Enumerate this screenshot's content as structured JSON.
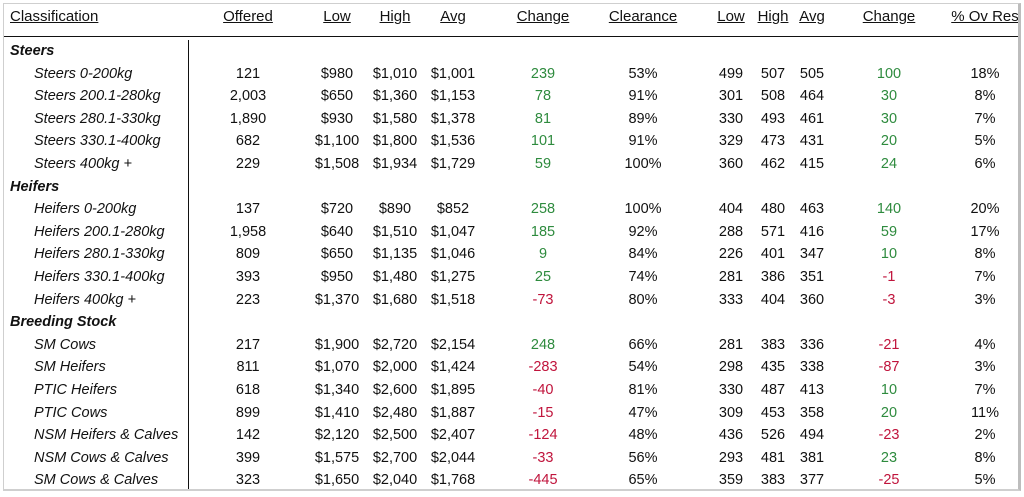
{
  "headers": {
    "classification": "Classification",
    "offered": "Offered",
    "low": "Low",
    "high": "High",
    "avg": "Avg",
    "change": "Change",
    "clearance": "Clearance",
    "low2": "Low",
    "high2": "High",
    "avg2": "Avg",
    "change2": "Change",
    "ovres": "% Ov Res"
  },
  "groups": [
    {
      "name": "Steers",
      "rows": [
        {
          "name": "Steers 0-200kg",
          "offered": "121",
          "low": "$980",
          "high": "$1,010",
          "avg": "$1,001",
          "change": "239",
          "clearance": "53%",
          "low2": "499",
          "high2": "507",
          "avg2": "505",
          "change2": "100",
          "ovres": "18%"
        },
        {
          "name": "Steers 200.1-280kg",
          "offered": "2,003",
          "low": "$650",
          "high": "$1,360",
          "avg": "$1,153",
          "change": "78",
          "clearance": "91%",
          "low2": "301",
          "high2": "508",
          "avg2": "464",
          "change2": "30",
          "ovres": "8%"
        },
        {
          "name": "Steers 280.1-330kg",
          "offered": "1,890",
          "low": "$930",
          "high": "$1,580",
          "avg": "$1,378",
          "change": "81",
          "clearance": "89%",
          "low2": "330",
          "high2": "493",
          "avg2": "461",
          "change2": "30",
          "ovres": "7%"
        },
        {
          "name": "Steers 330.1-400kg",
          "offered": "682",
          "low": "$1,100",
          "high": "$1,800",
          "avg": "$1,536",
          "change": "101",
          "clearance": "91%",
          "low2": "329",
          "high2": "473",
          "avg2": "431",
          "change2": "20",
          "ovres": "5%"
        },
        {
          "name": "Steers 400kg +",
          "offered": "229",
          "low": "$1,508",
          "high": "$1,934",
          "avg": "$1,729",
          "change": "59",
          "clearance": "100%",
          "low2": "360",
          "high2": "462",
          "avg2": "415",
          "change2": "24",
          "ovres": "6%"
        }
      ]
    },
    {
      "name": "Heifers",
      "rows": [
        {
          "name": "Heifers 0-200kg",
          "offered": "137",
          "low": "$720",
          "high": "$890",
          "avg": "$852",
          "change": "258",
          "clearance": "100%",
          "low2": "404",
          "high2": "480",
          "avg2": "463",
          "change2": "140",
          "ovres": "20%"
        },
        {
          "name": "Heifers 200.1-280kg",
          "offered": "1,958",
          "low": "$640",
          "high": "$1,510",
          "avg": "$1,047",
          "change": "185",
          "clearance": "92%",
          "low2": "288",
          "high2": "571",
          "avg2": "416",
          "change2": "59",
          "ovres": "17%"
        },
        {
          "name": "Heifers 280.1-330kg",
          "offered": "809",
          "low": "$650",
          "high": "$1,135",
          "avg": "$1,046",
          "change": "9",
          "clearance": "84%",
          "low2": "226",
          "high2": "401",
          "avg2": "347",
          "change2": "10",
          "ovres": "8%"
        },
        {
          "name": "Heifers 330.1-400kg",
          "offered": "393",
          "low": "$950",
          "high": "$1,480",
          "avg": "$1,275",
          "change": "25",
          "clearance": "74%",
          "low2": "281",
          "high2": "386",
          "avg2": "351",
          "change2": "-1",
          "ovres": "7%"
        },
        {
          "name": "Heifers 400kg +",
          "offered": "223",
          "low": "$1,370",
          "high": "$1,680",
          "avg": "$1,518",
          "change": "-73",
          "clearance": "80%",
          "low2": "333",
          "high2": "404",
          "avg2": "360",
          "change2": "-3",
          "ovres": "3%"
        }
      ]
    },
    {
      "name": "Breeding Stock",
      "rows": [
        {
          "name": "SM Cows",
          "offered": "217",
          "low": "$1,900",
          "high": "$2,720",
          "avg": "$2,154",
          "change": "248",
          "clearance": "66%",
          "low2": "281",
          "high2": "383",
          "avg2": "336",
          "change2": "-21",
          "ovres": "4%"
        },
        {
          "name": "SM Heifers",
          "offered": "811",
          "low": "$1,070",
          "high": "$2,000",
          "avg": "$1,424",
          "change": "-283",
          "clearance": "54%",
          "low2": "298",
          "high2": "435",
          "avg2": "338",
          "change2": "-87",
          "ovres": "3%"
        },
        {
          "name": "PTIC Heifers",
          "offered": "618",
          "low": "$1,340",
          "high": "$2,600",
          "avg": "$1,895",
          "change": "-40",
          "clearance": "81%",
          "low2": "330",
          "high2": "487",
          "avg2": "413",
          "change2": "10",
          "ovres": "7%"
        },
        {
          "name": "PTIC Cows",
          "offered": "899",
          "low": "$1,410",
          "high": "$2,480",
          "avg": "$1,887",
          "change": "-15",
          "clearance": "47%",
          "low2": "309",
          "high2": "453",
          "avg2": "358",
          "change2": "20",
          "ovres": "11%"
        },
        {
          "name": "NSM Heifers & Calves",
          "offered": "142",
          "low": "$2,120",
          "high": "$2,500",
          "avg": "$2,407",
          "change": "-124",
          "clearance": "48%",
          "low2": "436",
          "high2": "526",
          "avg2": "494",
          "change2": "-23",
          "ovres": "2%"
        },
        {
          "name": "NSM Cows & Calves",
          "offered": "399",
          "low": "$1,575",
          "high": "$2,700",
          "avg": "$2,044",
          "change": "-33",
          "clearance": "56%",
          "low2": "293",
          "high2": "481",
          "avg2": "381",
          "change2": "23",
          "ovres": "8%"
        },
        {
          "name": "SM Cows & Calves",
          "offered": "323",
          "low": "$1,650",
          "high": "$2,040",
          "avg": "$1,768",
          "change": "-445",
          "clearance": "65%",
          "low2": "359",
          "high2": "383",
          "avg2": "377",
          "change2": "-25",
          "ovres": "5%"
        }
      ]
    }
  ],
  "colors": {
    "positive": "#2e8b3e",
    "negative": "#c0143c"
  }
}
